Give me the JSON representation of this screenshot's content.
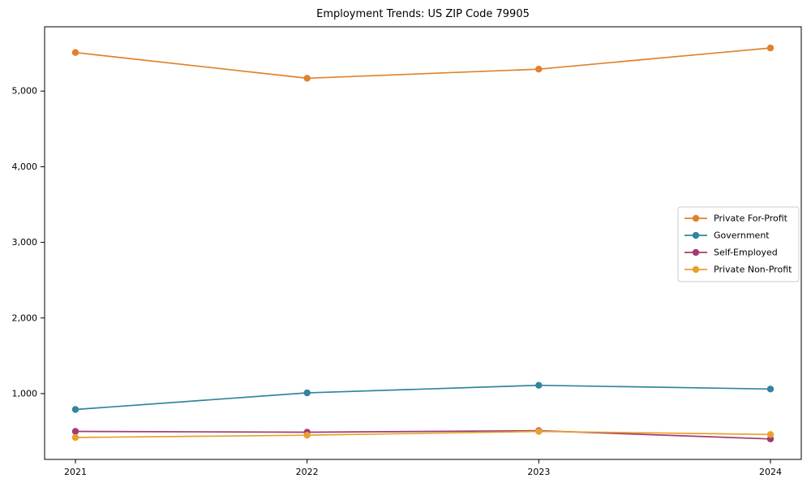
{
  "chart_data": {
    "type": "line",
    "title": "Employment Trends: US ZIP Code 79905",
    "categories": [
      "2021",
      "2022",
      "2023",
      "2024"
    ],
    "series": [
      {
        "name": "Private For-Profit",
        "color": "#e1812c",
        "values": [
          5510,
          5170,
          5290,
          5570
        ]
      },
      {
        "name": "Government",
        "color": "#31859c",
        "values": [
          790,
          1010,
          1110,
          1060
        ]
      },
      {
        "name": "Self-Employed",
        "color": "#a23b72",
        "values": [
          500,
          490,
          510,
          400
        ]
      },
      {
        "name": "Private Non-Profit",
        "color": "#e8a12c",
        "values": [
          420,
          450,
          500,
          460
        ]
      }
    ],
    "ylim": [
      130,
      5850
    ],
    "yticks": [
      {
        "value": 1000,
        "label": "1,000"
      },
      {
        "value": 2000,
        "label": "2,000"
      },
      {
        "value": 3000,
        "label": "3,000"
      },
      {
        "value": 4000,
        "label": "4,000"
      },
      {
        "value": 5000,
        "label": "5,000"
      }
    ],
    "grid": false,
    "legend_position": "center right",
    "marker": "circle",
    "axis_color": "#000000",
    "background": "#ffffff"
  }
}
